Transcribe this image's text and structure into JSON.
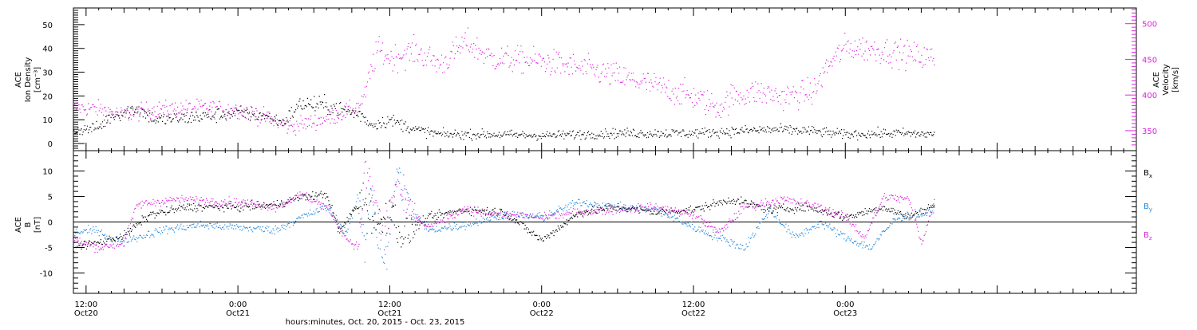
{
  "axis": {
    "time_start": "2015-10-20T11:00",
    "time_end": "2015-10-23T23:00",
    "tick_labels": [
      {
        "t": "2015-10-20T12:00",
        "top": "12:00",
        "bottom": "Oct20"
      },
      {
        "t": "2015-10-21T00:00",
        "top": "0:00",
        "bottom": "Oct21"
      },
      {
        "t": "2015-10-21T12:00",
        "top": "12:00",
        "bottom": "Oct21"
      },
      {
        "t": "2015-10-22T00:00",
        "top": "0:00",
        "bottom": "Oct22"
      },
      {
        "t": "2015-10-22T12:00",
        "top": "12:00",
        "bottom": "Oct22"
      },
      {
        "t": "2015-10-23T00:00",
        "top": "0:00",
        "bottom": "Oct23"
      }
    ],
    "xlabel": "hours:minutes, Oct. 20, 2015 - Oct. 23, 2015"
  },
  "chart_data": [
    {
      "type": "scatter",
      "panel": "plasma",
      "ylabel_left": [
        "ACE",
        "Ion Density",
        "[cm⁻³]"
      ],
      "ylabel_right": [
        "ACE",
        "Velocity",
        "[km/s]"
      ],
      "ylim_left": [
        -3,
        57
      ],
      "ylim_right": [
        322,
        522
      ],
      "yticks_left": [
        0,
        10,
        20,
        30,
        40,
        50
      ],
      "yticks_right": [
        350,
        400,
        450,
        500
      ],
      "series": [
        {
          "id": "density",
          "axis": "left",
          "color": "#000000",
          "data_end": "2015-10-23T07:00",
          "points": [
            [
              "2015-10-20T11:00",
              5.5
            ],
            [
              "2015-10-20T13:00",
              7
            ],
            [
              "2015-10-20T14:00",
              12
            ],
            [
              "2015-10-20T16:00",
              15
            ],
            [
              "2015-10-20T17:30",
              10
            ],
            [
              "2015-10-20T20:00",
              11
            ],
            [
              "2015-10-21T00:00",
              13
            ],
            [
              "2015-10-21T02:00",
              12
            ],
            [
              "2015-10-21T03:30",
              9
            ],
            [
              "2015-10-21T05:00",
              17
            ],
            [
              "2015-10-21T07:00",
              16
            ],
            [
              "2015-10-21T08:30",
              14
            ],
            [
              "2015-10-21T09:45",
              12
            ],
            [
              "2015-10-21T10:30",
              8
            ],
            [
              "2015-10-21T12:00",
              10
            ],
            [
              "2015-10-21T14:00",
              6
            ],
            [
              "2015-10-21T16:00",
              4
            ],
            [
              "2015-10-21T20:00",
              4
            ],
            [
              "2015-10-22T00:00",
              3.5
            ],
            [
              "2015-10-22T06:00",
              4.5
            ],
            [
              "2015-10-22T12:00",
              4.5
            ],
            [
              "2015-10-22T18:00",
              6
            ],
            [
              "2015-10-22T21:00",
              5.5
            ],
            [
              "2015-10-23T00:00",
              4
            ],
            [
              "2015-10-23T04:00",
              4.5
            ],
            [
              "2015-10-23T07:00",
              4
            ]
          ]
        },
        {
          "id": "velocity",
          "axis": "right",
          "color": "#dd22dd",
          "data_end": "2015-10-23T07:00",
          "points": [
            [
              "2015-10-20T11:00",
              383
            ],
            [
              "2015-10-20T13:00",
              381
            ],
            [
              "2015-10-20T15:00",
              372
            ],
            [
              "2015-10-20T17:00",
              380
            ],
            [
              "2015-10-20T21:00",
              383
            ],
            [
              "2015-10-21T00:00",
              380
            ],
            [
              "2015-10-21T02:00",
              370
            ],
            [
              "2015-10-21T04:00",
              356
            ],
            [
              "2015-10-21T06:00",
              363
            ],
            [
              "2015-10-21T08:00",
              373
            ],
            [
              "2015-10-21T09:30",
              385
            ],
            [
              "2015-10-21T10:00",
              400
            ],
            [
              "2015-10-21T10:30",
              435
            ],
            [
              "2015-10-21T11:00",
              465
            ],
            [
              "2015-10-21T12:00",
              452
            ],
            [
              "2015-10-21T14:00",
              462
            ],
            [
              "2015-10-21T16:00",
              443
            ],
            [
              "2015-10-21T18:00",
              475
            ],
            [
              "2015-10-21T20:00",
              452
            ],
            [
              "2015-10-22T00:00",
              448
            ],
            [
              "2015-10-22T04:00",
              435
            ],
            [
              "2015-10-22T08:00",
              418
            ],
            [
              "2015-10-22T12:00",
              398
            ],
            [
              "2015-10-22T14:00",
              383
            ],
            [
              "2015-10-22T15:00",
              398
            ],
            [
              "2015-10-22T17:00",
              405
            ],
            [
              "2015-10-22T19:00",
              398
            ],
            [
              "2015-10-22T21:30",
              405
            ],
            [
              "2015-10-22T22:30",
              440
            ],
            [
              "2015-10-23T00:00",
              468
            ],
            [
              "2015-10-23T02:00",
              465
            ],
            [
              "2015-10-23T04:00",
              460
            ],
            [
              "2015-10-23T07:00",
              452
            ]
          ]
        }
      ]
    },
    {
      "type": "scatter",
      "panel": "magnetic",
      "ylabel_left": [
        "ACE",
        "B",
        "[nT]"
      ],
      "ylim": [
        -14,
        14
      ],
      "yticks": [
        -10,
        -5,
        0,
        5,
        10
      ],
      "zero_line": true,
      "legend_placement": "right",
      "series": [
        {
          "id": "bx",
          "name": "B",
          "subscript": "x",
          "color": "#000000",
          "data_end": "2015-10-23T07:00",
          "points": [
            [
              "2015-10-20T11:00",
              -4.5
            ],
            [
              "2015-10-20T13:00",
              -4
            ],
            [
              "2015-10-20T15:00",
              -2.5
            ],
            [
              "2015-10-20T17:00",
              1.5
            ],
            [
              "2015-10-20T20:00",
              3
            ],
            [
              "2015-10-21T00:00",
              3
            ],
            [
              "2015-10-21T03:00",
              3.5
            ],
            [
              "2015-10-21T05:00",
              5
            ],
            [
              "2015-10-21T07:00",
              5.5
            ],
            [
              "2015-10-21T08:00",
              -2
            ],
            [
              "2015-10-21T09:00",
              2
            ],
            [
              "2015-10-21T10:00",
              5
            ],
            [
              "2015-10-21T11:00",
              -1
            ],
            [
              "2015-10-21T12:00",
              3
            ],
            [
              "2015-10-21T13:00",
              -3
            ],
            [
              "2015-10-21T15:00",
              1
            ],
            [
              "2015-10-21T18:00",
              2.5
            ],
            [
              "2015-10-21T21:00",
              2
            ],
            [
              "2015-10-22T00:00",
              -3.5
            ],
            [
              "2015-10-22T03:00",
              2
            ],
            [
              "2015-10-22T06:00",
              3
            ],
            [
              "2015-10-22T09:00",
              2
            ],
            [
              "2015-10-22T12:00",
              2.5
            ],
            [
              "2015-10-22T15:00",
              4.5
            ],
            [
              "2015-10-22T18:00",
              2.5
            ],
            [
              "2015-10-22T21:00",
              3
            ],
            [
              "2015-10-23T00:00",
              1
            ],
            [
              "2015-10-23T03:00",
              3
            ],
            [
              "2015-10-23T05:00",
              1
            ],
            [
              "2015-10-23T07:00",
              3.5
            ]
          ]
        },
        {
          "id": "by",
          "name": "B",
          "subscript": "y",
          "color": "#2288dd",
          "data_end": "2015-10-23T07:00",
          "points": [
            [
              "2015-10-20T11:00",
              -2
            ],
            [
              "2015-10-20T13:00",
              -1.5
            ],
            [
              "2015-10-20T14:00",
              -3.5
            ],
            [
              "2015-10-20T16:00",
              -3
            ],
            [
              "2015-10-20T18:00",
              -1.5
            ],
            [
              "2015-10-20T21:00",
              -0.5
            ],
            [
              "2015-10-21T00:00",
              -1
            ],
            [
              "2015-10-21T03:00",
              -1.5
            ],
            [
              "2015-10-21T05:00",
              1
            ],
            [
              "2015-10-21T07:00",
              3
            ],
            [
              "2015-10-21T08:30",
              -2
            ],
            [
              "2015-10-21T09:30",
              5
            ],
            [
              "2015-10-21T10:00",
              -6
            ],
            [
              "2015-10-21T10:30",
              8
            ],
            [
              "2015-10-21T11:00",
              -3
            ],
            [
              "2015-10-21T11:45",
              -8
            ],
            [
              "2015-10-21T12:30",
              10
            ],
            [
              "2015-10-21T13:30",
              3
            ],
            [
              "2015-10-21T15:00",
              -1.5
            ],
            [
              "2015-10-21T18:00",
              -0.5
            ],
            [
              "2015-10-21T21:00",
              1.5
            ],
            [
              "2015-10-22T00:00",
              1
            ],
            [
              "2015-10-22T03:00",
              4
            ],
            [
              "2015-10-22T06:00",
              3
            ],
            [
              "2015-10-22T09:00",
              2.5
            ],
            [
              "2015-10-22T12:00",
              -1
            ],
            [
              "2015-10-22T14:00",
              -3
            ],
            [
              "2015-10-22T16:00",
              -5
            ],
            [
              "2015-10-22T18:00",
              2.5
            ],
            [
              "2015-10-22T20:00",
              -3
            ],
            [
              "2015-10-22T22:00",
              0
            ],
            [
              "2015-10-23T00:00",
              -3
            ],
            [
              "2015-10-23T02:00",
              -5
            ],
            [
              "2015-10-23T04:00",
              1
            ],
            [
              "2015-10-23T07:00",
              2
            ]
          ]
        },
        {
          "id": "bz",
          "name": "B",
          "subscript": "z",
          "color": "#dd22dd",
          "data_end": "2015-10-23T07:00",
          "points": [
            [
              "2015-10-20T11:00",
              -3.5
            ],
            [
              "2015-10-20T13:00",
              -5
            ],
            [
              "2015-10-20T15:00",
              -4
            ],
            [
              "2015-10-20T16:00",
              3.5
            ],
            [
              "2015-10-20T19:00",
              4.5
            ],
            [
              "2015-10-21T00:00",
              4
            ],
            [
              "2015-10-21T03:00",
              3
            ],
            [
              "2015-10-21T05:00",
              5.5
            ],
            [
              "2015-10-21T07:00",
              3
            ],
            [
              "2015-10-21T08:30",
              -3
            ],
            [
              "2015-10-21T09:30",
              -5
            ],
            [
              "2015-10-21T10:00",
              10
            ],
            [
              "2015-10-21T10:45",
              5
            ],
            [
              "2015-10-21T11:30",
              -3
            ],
            [
              "2015-10-21T12:30",
              8
            ],
            [
              "2015-10-21T13:30",
              2
            ],
            [
              "2015-10-21T15:00",
              -1
            ],
            [
              "2015-10-21T18:00",
              2.5
            ],
            [
              "2015-10-21T21:00",
              1.5
            ],
            [
              "2015-10-22T00:00",
              1
            ],
            [
              "2015-10-22T03:00",
              2
            ],
            [
              "2015-10-22T06:00",
              2.5
            ],
            [
              "2015-10-22T09:00",
              3
            ],
            [
              "2015-10-22T12:00",
              1.5
            ],
            [
              "2015-10-22T14:00",
              -2
            ],
            [
              "2015-10-22T16:00",
              3
            ],
            [
              "2015-10-22T19:00",
              4.5
            ],
            [
              "2015-10-22T22:00",
              3
            ],
            [
              "2015-10-23T00:00",
              1
            ],
            [
              "2015-10-23T01:30",
              -3
            ],
            [
              "2015-10-23T03:00",
              5
            ],
            [
              "2015-10-23T05:00",
              4.5
            ],
            [
              "2015-10-23T06:00",
              -4
            ],
            [
              "2015-10-23T07:00",
              4
            ]
          ]
        }
      ]
    }
  ]
}
